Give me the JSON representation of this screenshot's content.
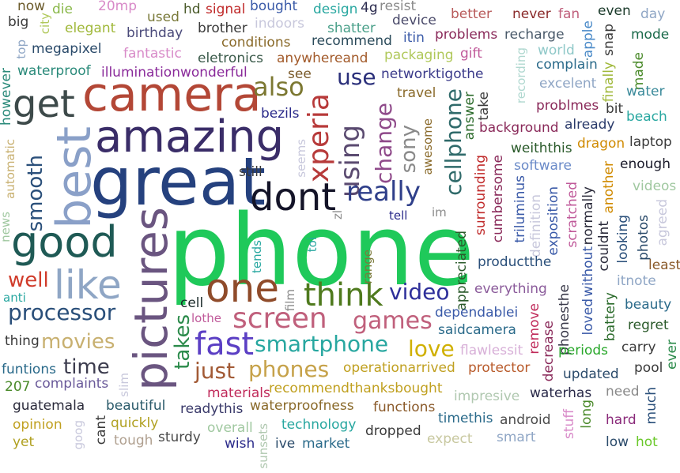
{
  "words": [
    {
      "t": "phone",
      "c": "#1fc95a"
    },
    {
      "t": "great",
      "c": "#25417e"
    },
    {
      "t": "amazing",
      "c": "#3a2d68"
    },
    {
      "t": "camera",
      "c": "#b34736"
    },
    {
      "t": "pictures",
      "c": "#6a5580"
    },
    {
      "t": "best",
      "c": "#8aa0c8"
    },
    {
      "t": "good",
      "c": "#1f5a55"
    },
    {
      "t": "get",
      "c": "#3d4a4a"
    },
    {
      "t": "dont",
      "c": "#141428"
    },
    {
      "t": "one",
      "c": "#8f4b2a"
    },
    {
      "t": "like",
      "c": "#8fa6c5"
    },
    {
      "t": "xperia",
      "c": "#b73a3a"
    },
    {
      "t": "using",
      "c": "#5a4a70"
    },
    {
      "t": "really",
      "c": "#2f3f8a"
    },
    {
      "t": "screen",
      "c": "#c0607c"
    },
    {
      "t": "think",
      "c": "#4f7a1e"
    },
    {
      "t": "fast",
      "c": "#5b3fc4"
    },
    {
      "t": "also",
      "c": "#7c7832"
    },
    {
      "t": "use",
      "c": "#2a2f7a"
    },
    {
      "t": "change",
      "c": "#8f4a8a"
    },
    {
      "t": "sony",
      "c": "#8a8a8a"
    },
    {
      "t": "cellphone",
      "c": "#2f6a6a"
    },
    {
      "t": "video",
      "c": "#2e2f9a"
    },
    {
      "t": "smartphone",
      "c": "#28a7a0"
    },
    {
      "t": "games",
      "c": "#c0607c"
    },
    {
      "t": "love",
      "c": "#d0b000"
    },
    {
      "t": "takes",
      "c": "#2a8a4a"
    },
    {
      "t": "just",
      "c": "#a25a35"
    },
    {
      "t": "phones",
      "c": "#c6a24a"
    },
    {
      "t": "movies",
      "c": "#c8b070"
    },
    {
      "t": "time",
      "c": "#3c3c4e"
    },
    {
      "t": "processor",
      "c": "#2a4f7a"
    },
    {
      "t": "well",
      "c": "#d03b2a"
    },
    {
      "t": "smooth",
      "c": "#2a4f7a"
    },
    {
      "t": "now",
      "c": "#6b5a2a"
    },
    {
      "t": "die",
      "c": "#8ab84a"
    },
    {
      "t": "20mp",
      "c": "#d88ac8"
    },
    {
      "t": "hd",
      "c": "#4a5a2a"
    },
    {
      "t": "signal",
      "c": "#c02a2a"
    },
    {
      "t": "bought",
      "c": "#3a5aa8"
    },
    {
      "t": "design",
      "c": "#28a7a0"
    },
    {
      "t": "4g",
      "c": "#2a2a4e"
    },
    {
      "t": "resist",
      "c": "#8a8a8a"
    },
    {
      "t": "better",
      "c": "#b85a5a"
    },
    {
      "t": "never",
      "c": "#8a2a2a"
    },
    {
      "t": "fan",
      "c": "#c0607c"
    },
    {
      "t": "even",
      "c": "#1a3a2a"
    },
    {
      "t": "day",
      "c": "#8fa6c5"
    },
    {
      "t": "big",
      "c": "#3a3a3a"
    },
    {
      "t": "city",
      "c": "#b0c85a"
    },
    {
      "t": "elegant",
      "c": "#a0b83a"
    },
    {
      "t": "used",
      "c": "#7a7a3a"
    },
    {
      "t": "brother",
      "c": "#3a3a3a"
    },
    {
      "t": "indoors",
      "c": "#c8c8dc"
    },
    {
      "t": "shatter",
      "c": "#4aa08a"
    },
    {
      "t": "device",
      "c": "#4a4a6a"
    },
    {
      "t": "mode",
      "c": "#1a6a4a"
    },
    {
      "t": "birthday",
      "c": "#4a4a7a"
    },
    {
      "t": "conditions",
      "c": "#8a6a2a"
    },
    {
      "t": "recommend",
      "c": "#2a4a5a"
    },
    {
      "t": "itin",
      "c": "#3a5aa8"
    },
    {
      "t": "problems",
      "c": "#8a2a5a"
    },
    {
      "t": "recharge",
      "c": "#4a5a6a"
    },
    {
      "t": "apple",
      "c": "#4a8ac8"
    },
    {
      "t": "snap",
      "c": "#3a3a3a"
    },
    {
      "t": "top",
      "c": "#8fa6c5"
    },
    {
      "t": "megapixel",
      "c": "#2a4a6a"
    },
    {
      "t": "fantastic",
      "c": "#d88ac8"
    },
    {
      "t": "eletronics",
      "c": "#3a5a4a"
    },
    {
      "t": "anywhereand",
      "c": "#a25a2a"
    },
    {
      "t": "packaging",
      "c": "#b0c85a"
    },
    {
      "t": "gift",
      "c": "#c05a9a"
    },
    {
      "t": "recording",
      "c": "#b0d8d0"
    },
    {
      "t": "world",
      "c": "#8fc8c8"
    },
    {
      "t": "complain",
      "c": "#2a6a8a"
    },
    {
      "t": "waterproof",
      "c": "#2a8a7a"
    },
    {
      "t": "illuminationwonderful",
      "c": "#8a2a9a"
    },
    {
      "t": "see",
      "c": "#7a5a2a"
    },
    {
      "t": "networktigothe",
      "c": "#3a3a8a"
    },
    {
      "t": "excelent",
      "c": "#8fa6c5"
    },
    {
      "t": "finally",
      "c": "#a0b83a"
    },
    {
      "t": "made",
      "c": "#4a8a2a"
    },
    {
      "t": "water",
      "c": "#3a8a9a"
    },
    {
      "t": "however",
      "c": "#2a8a7a"
    },
    {
      "t": "bezils",
      "c": "#2a2a8a"
    },
    {
      "t": "travel",
      "c": "#8a6a2a"
    },
    {
      "t": "answer",
      "c": "#2a6a2a"
    },
    {
      "t": "take",
      "c": "#3a3a3a"
    },
    {
      "t": "problmes",
      "c": "#8a2a5a"
    },
    {
      "t": "bit",
      "c": "#3a3a3a"
    },
    {
      "t": "beach",
      "c": "#28a7a0"
    },
    {
      "t": "awesome",
      "c": "#8a6a2a"
    },
    {
      "t": "background",
      "c": "#8a2a5a"
    },
    {
      "t": "already",
      "c": "#2a3a6a"
    },
    {
      "t": "weiththis",
      "c": "#2a5a2a"
    },
    {
      "t": "dragon",
      "c": "#d08a00"
    },
    {
      "t": "laptop",
      "c": "#3a3a3a"
    },
    {
      "t": "seems",
      "c": "#c8c8dc"
    },
    {
      "t": "still",
      "c": "#3a3a3a"
    },
    {
      "t": "software",
      "c": "#6a8ac8"
    },
    {
      "t": "enough",
      "c": "#1a1a2a"
    },
    {
      "t": "automatic",
      "c": "#c8b070"
    },
    {
      "t": "cumbersome",
      "c": "#8a2a5a"
    },
    {
      "t": "triluminus",
      "c": "#3a5aa8"
    },
    {
      "t": "scratched",
      "c": "#c05a9a"
    },
    {
      "t": "another",
      "c": "#d08a00"
    },
    {
      "t": "videos",
      "c": "#a0c8a0"
    },
    {
      "t": "surrounding",
      "c": "#c02a2a"
    },
    {
      "t": "tell",
      "c": "#2a2a8a"
    },
    {
      "t": "im",
      "c": "#8a8a8a"
    },
    {
      "t": "definition",
      "c": "#c8c8dc"
    },
    {
      "t": "exposition",
      "c": "#3a5aa8"
    },
    {
      "t": "normally",
      "c": "#2a2a3a"
    },
    {
      "t": "couldnt",
      "c": "#2a2a3a"
    },
    {
      "t": "looking",
      "c": "#2a4f7a"
    },
    {
      "t": "photos",
      "c": "#2a4a6a"
    },
    {
      "t": "agreed",
      "c": "#c8c8dc"
    },
    {
      "t": "news",
      "c": "#a0c8a0"
    },
    {
      "t": "zl",
      "c": "#8a8a8a"
    },
    {
      "t": "tends",
      "c": "#28a7a0"
    },
    {
      "t": "toi",
      "c": "#28a7a0"
    },
    {
      "t": "range",
      "c": "#7a7a3a"
    },
    {
      "t": "appreciated",
      "c": "#2a5a2a"
    },
    {
      "t": "productthe",
      "c": "#2a4f7a"
    },
    {
      "t": "least",
      "c": "#8a5a2a"
    },
    {
      "t": "itnote",
      "c": "#8fa6c5"
    },
    {
      "t": "anti",
      "c": "#28a7a0"
    },
    {
      "t": "cell",
      "c": "#1a2a2a"
    },
    {
      "t": "film",
      "c": "#8a8a8a"
    },
    {
      "t": "everything",
      "c": "#8a5a9a"
    },
    {
      "t": "without",
      "c": "#3a5aa8"
    },
    {
      "t": "beauty",
      "c": "#2a6a8a"
    },
    {
      "t": "lothe",
      "c": "#c05a9a"
    },
    {
      "t": "dependablei",
      "c": "#3a5aa8"
    },
    {
      "t": "remove",
      "c": "#c02a5a"
    },
    {
      "t": "phonesthe",
      "c": "#3a3a4a"
    },
    {
      "t": "loved",
      "c": "#3a5aa8"
    },
    {
      "t": "battery",
      "c": "#2a6a2a"
    },
    {
      "t": "regret",
      "c": "#2a5a2a"
    },
    {
      "t": "thing",
      "c": "#3a3a3a"
    },
    {
      "t": "saidcamera",
      "c": "#2a6a8a"
    },
    {
      "t": "flawlessit",
      "c": "#d8b0d8"
    },
    {
      "t": "decrease",
      "c": "#8a2a5a"
    },
    {
      "t": "periods",
      "c": "#28a72a"
    },
    {
      "t": "carry",
      "c": "#3a3a3a"
    },
    {
      "t": "ever",
      "c": "#2a8a4a"
    },
    {
      "t": "funtions",
      "c": "#2a6a8a"
    },
    {
      "t": "operationarrived",
      "c": "#c0a020"
    },
    {
      "t": "protector",
      "c": "#b85a2a"
    },
    {
      "t": "updated",
      "c": "#2a4a6a"
    },
    {
      "t": "pool",
      "c": "#3a3a3a"
    },
    {
      "t": "207",
      "c": "#4a8a2a"
    },
    {
      "t": "complaints",
      "c": "#6a5a9a"
    },
    {
      "t": "slim",
      "c": "#c8c8dc"
    },
    {
      "t": "materials",
      "c": "#c02a5a"
    },
    {
      "t": "recommendthanksbought",
      "c": "#c0a020"
    },
    {
      "t": "impresive",
      "c": "#b0c8b0"
    },
    {
      "t": "waterhas",
      "c": "#2a2a4a"
    },
    {
      "t": "need",
      "c": "#8a8a8a"
    },
    {
      "t": "much",
      "c": "#2a4f7a"
    },
    {
      "t": "guatemala",
      "c": "#2a2a3a"
    },
    {
      "t": "beautiful",
      "c": "#2a5a6a"
    },
    {
      "t": "readythis",
      "c": "#3a3a6a"
    },
    {
      "t": "waterproofness",
      "c": "#8a6a2a"
    },
    {
      "t": "functions",
      "c": "#8a5a2a"
    },
    {
      "t": "timethis",
      "c": "#2a6a8a"
    },
    {
      "t": "android",
      "c": "#4a4a4a"
    },
    {
      "t": "stuff",
      "c": "#d88ac8"
    },
    {
      "t": "long",
      "c": "#4a8a2a"
    },
    {
      "t": "hard",
      "c": "#8a2a7a"
    },
    {
      "t": "opinion",
      "c": "#c0a020"
    },
    {
      "t": "goog",
      "c": "#c8c8dc"
    },
    {
      "t": "cant",
      "c": "#3a3a3a"
    },
    {
      "t": "quickly",
      "c": "#b0a020"
    },
    {
      "t": "overall",
      "c": "#a0c8a0"
    },
    {
      "t": "technology",
      "c": "#28a7a0"
    },
    {
      "t": "dropped",
      "c": "#3a3a3a"
    },
    {
      "t": "expect",
      "c": "#c8c8a0"
    },
    {
      "t": "smart",
      "c": "#8fa6c5"
    },
    {
      "t": "yet",
      "c": "#b0a020"
    },
    {
      "t": "tough",
      "c": "#b0a090"
    },
    {
      "t": "sturdy",
      "c": "#4a4a4a"
    },
    {
      "t": "wish",
      "c": "#2a2a8a"
    },
    {
      "t": "sunsets",
      "c": "#b0c8b0"
    },
    {
      "t": "ive",
      "c": "#2a4a6a"
    },
    {
      "t": "market",
      "c": "#2a6a8a"
    },
    {
      "t": "low",
      "c": "#2a4a6a"
    },
    {
      "t": "hot",
      "c": "#6ac82a"
    }
  ]
}
